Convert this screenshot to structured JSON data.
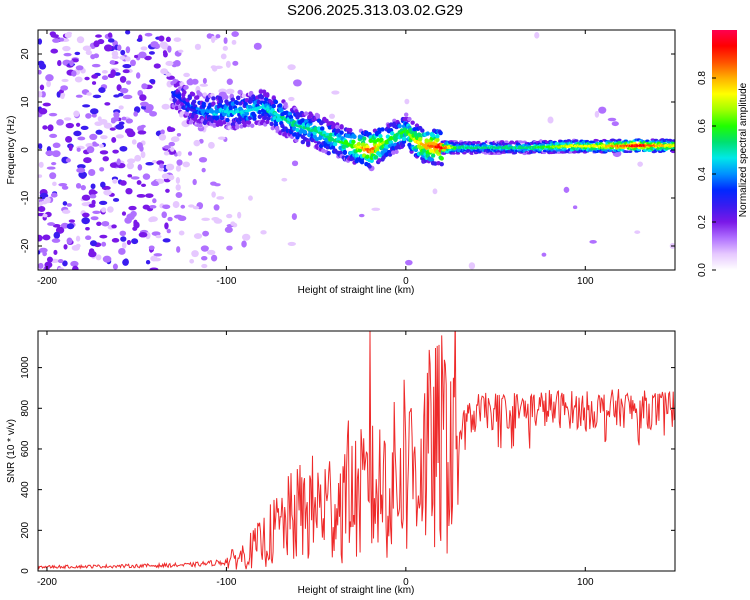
{
  "title": "S206.2025.313.03.02.G29",
  "chart_data": [
    {
      "type": "heatmap",
      "name": "spectrogram",
      "xlabel": "Height of straight line (km)",
      "ylabel": "Frequency (Hz)",
      "xlim": [
        -205,
        150
      ],
      "ylim": [
        -25,
        25
      ],
      "xticks": [
        -200,
        -100,
        0,
        100
      ],
      "yticks": [
        -20,
        -10,
        0,
        10,
        20
      ],
      "colorbar": {
        "label": "Normalized spectral amplitude",
        "range": [
          0,
          1
        ],
        "ticks": [
          0.0,
          0.2,
          0.4,
          0.6,
          0.8
        ],
        "colors": [
          "#ffffff",
          "#e6c8ff",
          "#b070ff",
          "#7a18e8",
          "#3a1cf0",
          "#0028ff",
          "#0090ff",
          "#00e8e8",
          "#00e070",
          "#20ff00",
          "#a0ff00",
          "#ffff00",
          "#ffb000",
          "#ff5000",
          "#ff0000",
          "#ff0050"
        ]
      },
      "ridge": {
        "x": [
          -130,
          -120,
          -110,
          -100,
          -90,
          -80,
          -70,
          -60,
          -50,
          -40,
          -30,
          -20,
          -10,
          -5,
          0,
          5,
          10,
          20,
          30,
          50,
          70,
          90,
          110,
          130,
          150
        ],
        "freq": [
          12,
          9,
          8,
          8,
          8,
          9,
          7,
          5,
          4,
          2,
          1,
          0,
          2,
          3,
          4,
          2,
          1,
          0.5,
          0.5,
          0.5,
          0.5,
          0.8,
          0.8,
          0.9,
          0.9
        ],
        "amplitude": [
          0.3,
          0.35,
          0.4,
          0.45,
          0.45,
          0.45,
          0.5,
          0.5,
          0.5,
          0.55,
          0.6,
          0.9,
          0.6,
          0.55,
          0.6,
          0.7,
          0.8,
          0.95,
          0.5,
          0.5,
          0.55,
          0.7,
          0.75,
          0.95,
          0.7
        ]
      }
    },
    {
      "type": "line",
      "name": "snr",
      "xlabel": "Height of straight line (km)",
      "ylabel": "SNR (10 * v/v)",
      "xlim": [
        -205,
        150
      ],
      "ylim": [
        0,
        1180
      ],
      "xticks": [
        -200,
        -100,
        0,
        100
      ],
      "yticks": [
        0,
        200,
        400,
        600,
        800,
        1000
      ],
      "series": [
        {
          "name": "SNR",
          "color": "#ee2a2a",
          "x": [
            -205,
            -180,
            -150,
            -120,
            -100,
            -90,
            -80,
            -70,
            -60,
            -50,
            -40,
            -30,
            -20,
            -10,
            0,
            10,
            20,
            30,
            40,
            60,
            80,
            100,
            120,
            140,
            150
          ],
          "y": [
            20,
            22,
            25,
            30,
            45,
            80,
            140,
            220,
            280,
            310,
            330,
            360,
            380,
            420,
            480,
            560,
            620,
            700,
            780,
            790,
            800,
            790,
            800,
            790,
            800
          ],
          "spikes": [
            {
              "x": -20,
              "y": 1180
            },
            {
              "x": -1,
              "y": 940
            },
            {
              "x": -32,
              "y": 740
            },
            {
              "x": -60,
              "y": 420
            },
            {
              "x": -12,
              "y": 640
            },
            {
              "x": 2,
              "y": 780
            }
          ]
        }
      ]
    }
  ]
}
